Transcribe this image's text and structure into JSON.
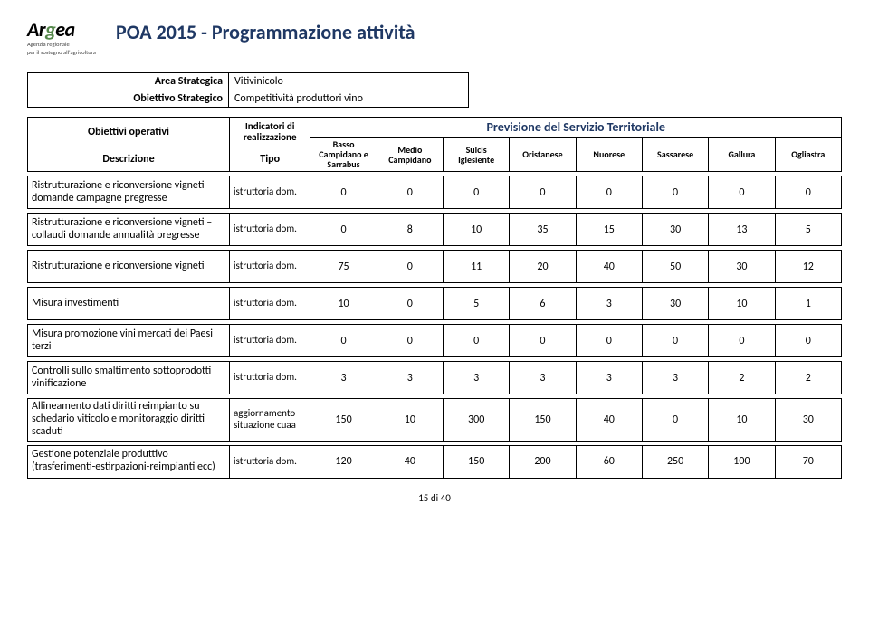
{
  "logo": {
    "name_pre": "Ar",
    "name_mid": "g",
    "name_post": "ea",
    "sub1": "Agenzia regionale",
    "sub2": "per il sostegno all'agricoltura"
  },
  "title": "POA 2015 - Programmazione  attività",
  "meta": {
    "labels": {
      "area": "Area Strategica",
      "obiettivo": "Obiettivo Strategico"
    },
    "values": {
      "area": "Vitivinicolo",
      "obiettivo": "Competitività produttori vino"
    }
  },
  "header_row1": {
    "obiettivi": "Obiettivi operativi",
    "indicatori": "Indicatori di realizzazione",
    "previsione": "Previsione del Servizio Territoriale"
  },
  "header_row2": {
    "descrizione": "Descrizione",
    "tipo": "Tipo",
    "cols": [
      "Basso Campidano e Sarrabus",
      "Medio Campidano",
      "Sulcis Iglesiente",
      "Oristanese",
      "Nuorese",
      "Sassarese",
      "Gallura",
      "Ogliastra"
    ]
  },
  "rows": [
    {
      "desc": "Ristrutturazione e riconversione vigneti – domande campagne pregresse",
      "tipo": "istruttoria dom.",
      "vals": [
        "0",
        "0",
        "0",
        "0",
        "0",
        "0",
        "0",
        "0"
      ]
    },
    {
      "desc": "Ristrutturazione e riconversione vigneti – collaudi domande annualità pregresse",
      "tipo": "istruttoria dom.",
      "vals": [
        "0",
        "8",
        "10",
        "35",
        "15",
        "30",
        "13",
        "5"
      ]
    },
    {
      "desc": "Ristrutturazione e riconversione vigneti",
      "tipo": "istruttoria dom.",
      "vals": [
        "75",
        "0",
        "11",
        "20",
        "40",
        "50",
        "30",
        "12"
      ]
    },
    {
      "desc": "Misura investimenti",
      "tipo": "istruttoria dom.",
      "vals": [
        "10",
        "0",
        "5",
        "6",
        "3",
        "30",
        "10",
        "1"
      ]
    },
    {
      "desc": "Misura promozione vini mercati dei Paesi terzi",
      "tipo": "istruttoria dom.",
      "vals": [
        "0",
        "0",
        "0",
        "0",
        "0",
        "0",
        "0",
        "0"
      ]
    },
    {
      "desc": "Controlli sullo smaltimento sottoprodotti vinificazione",
      "tipo": "istruttoria dom.",
      "vals": [
        "3",
        "3",
        "3",
        "3",
        "3",
        "3",
        "2",
        "2"
      ]
    },
    {
      "desc": "Allineamento dati diritti reimpianto su schedario viticolo e monitoraggio diritti scaduti",
      "tipo": "aggiornamento situazione cuaa",
      "vals": [
        "150",
        "10",
        "300",
        "150",
        "40",
        "0",
        "10",
        "30"
      ]
    },
    {
      "desc": "Gestione potenziale produttivo (trasferimenti-estirpazioni-reimpianti ecc)",
      "tipo": "istruttoria dom.",
      "vals": [
        "120",
        "40",
        "150",
        "200",
        "60",
        "250",
        "100",
        "70"
      ]
    }
  ],
  "footer": "15 di 40",
  "layout": {
    "col_widths": {
      "desc": 222,
      "tipo": 89,
      "region": 73
    }
  }
}
